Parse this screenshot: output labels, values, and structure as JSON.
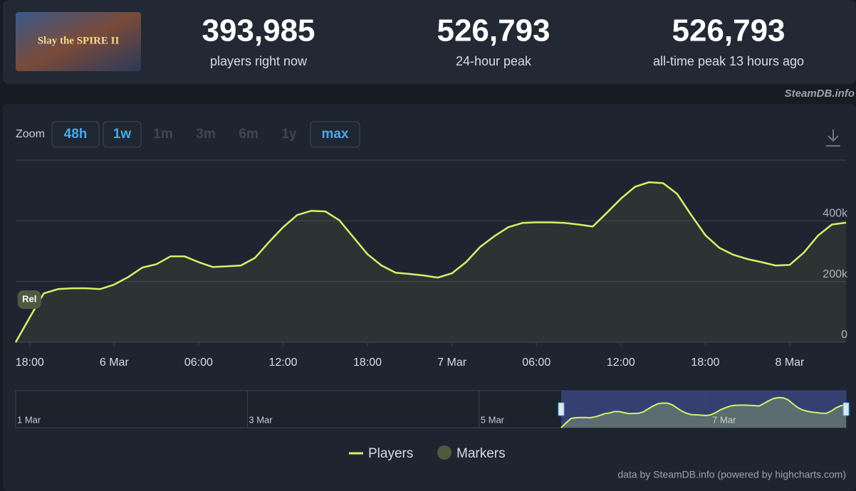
{
  "header": {
    "game_logo": "Slay the SPIRE II",
    "stats": [
      {
        "value": "393,985",
        "label": "players right now"
      },
      {
        "value": "526,793",
        "label": "24-hour peak"
      },
      {
        "value": "526,793",
        "label": "all-time peak 13 hours ago"
      }
    ],
    "watermark": "SteamDB.info"
  },
  "zoom": {
    "label": "Zoom",
    "buttons": [
      {
        "label": "48h",
        "enabled": true
      },
      {
        "label": "1w",
        "enabled": true
      },
      {
        "label": "1m",
        "enabled": false
      },
      {
        "label": "3m",
        "enabled": false
      },
      {
        "label": "6m",
        "enabled": false
      },
      {
        "label": "1y",
        "enabled": false
      },
      {
        "label": "max",
        "enabled": true
      }
    ]
  },
  "chart_data": {
    "type": "line",
    "x": [
      "5 Mar 17:00",
      "5 Mar 18:00",
      "5 Mar 19:00",
      "5 Mar 20:00",
      "5 Mar 21:00",
      "5 Mar 22:00",
      "5 Mar 23:00",
      "6 Mar 00:00",
      "6 Mar 01:00",
      "6 Mar 02:00",
      "6 Mar 03:00",
      "6 Mar 04:00",
      "6 Mar 05:00",
      "6 Mar 06:00",
      "6 Mar 07:00",
      "6 Mar 08:00",
      "6 Mar 09:00",
      "6 Mar 10:00",
      "6 Mar 11:00",
      "6 Mar 12:00",
      "6 Mar 13:00",
      "6 Mar 14:00",
      "6 Mar 15:00",
      "6 Mar 16:00",
      "6 Mar 17:00",
      "6 Mar 18:00",
      "6 Mar 19:00",
      "6 Mar 20:00",
      "6 Mar 21:00",
      "6 Mar 22:00",
      "6 Mar 23:00",
      "7 Mar 00:00",
      "7 Mar 01:00",
      "7 Mar 02:00",
      "7 Mar 03:00",
      "7 Mar 04:00",
      "7 Mar 05:00",
      "7 Mar 06:00",
      "7 Mar 07:00",
      "7 Mar 08:00",
      "7 Mar 09:00",
      "7 Mar 10:00",
      "7 Mar 11:00",
      "7 Mar 12:00",
      "7 Mar 13:00",
      "7 Mar 14:00",
      "7 Mar 15:00",
      "7 Mar 16:00",
      "7 Mar 17:00",
      "7 Mar 18:00",
      "7 Mar 19:00",
      "7 Mar 20:00",
      "7 Mar 21:00",
      "7 Mar 22:00",
      "7 Mar 23:00",
      "8 Mar 00:00",
      "8 Mar 01:00",
      "8 Mar 02:00",
      "8 Mar 03:00",
      "8 Mar 04:00"
    ],
    "series": [
      {
        "name": "Players",
        "color": "#d4f26a",
        "values": [
          0,
          82000,
          161000,
          175000,
          178000,
          178000,
          175000,
          190000,
          215000,
          246000,
          257000,
          283000,
          283000,
          264000,
          248000,
          250000,
          253000,
          278000,
          330000,
          379000,
          419000,
          433000,
          431000,
          402000,
          346000,
          290000,
          253000,
          229000,
          225000,
          220000,
          213000,
          227000,
          264000,
          314000,
          349000,
          379000,
          393000,
          395000,
          395000,
          393000,
          388000,
          381000,
          426000,
          473000,
          512000,
          527000,
          524000,
          489000,
          419000,
          353000,
          311000,
          288000,
          274000,
          264000,
          253000,
          255000,
          295000,
          351000,
          388000,
          394000
        ]
      }
    ],
    "markers": {
      "name": "Markers",
      "color": "#4c5a40",
      "items": [
        {
          "x": "5 Mar 18:00",
          "label": "Rel"
        }
      ]
    },
    "xlim": [
      "5 Mar 17:00",
      "8 Mar 04:00"
    ],
    "xticks": [
      {
        "value": "5 Mar 18:00",
        "label": "18:00"
      },
      {
        "value": "6 Mar 00:00",
        "label": "6 Mar"
      },
      {
        "value": "6 Mar 06:00",
        "label": "06:00"
      },
      {
        "value": "6 Mar 12:00",
        "label": "12:00"
      },
      {
        "value": "6 Mar 18:00",
        "label": "18:00"
      },
      {
        "value": "7 Mar 00:00",
        "label": "7 Mar"
      },
      {
        "value": "7 Mar 06:00",
        "label": "06:00"
      },
      {
        "value": "7 Mar 12:00",
        "label": "12:00"
      },
      {
        "value": "7 Mar 18:00",
        "label": "18:00"
      },
      {
        "value": "8 Mar 00:00",
        "label": "8 Mar"
      }
    ],
    "ylim": [
      0,
      600000
    ],
    "yticks": [
      0,
      {
        "value": 200000,
        "label": "200k"
      },
      {
        "value": 400000,
        "label": "400k"
      }
    ],
    "grid": true,
    "navigator": {
      "xlim": [
        "1 Mar 00:00",
        "8 Mar 04:00"
      ],
      "xticks": [
        {
          "value": "1 Mar 00:00",
          "label": "1 Mar"
        },
        {
          "value": "3 Mar 00:00",
          "label": "3 Mar"
        },
        {
          "value": "5 Mar 00:00",
          "label": "5 Mar"
        },
        {
          "value": "7 Mar 00:00",
          "label": "7 Mar"
        }
      ]
    }
  },
  "credit": "data by SteamDB.info (powered by highcharts.com)"
}
